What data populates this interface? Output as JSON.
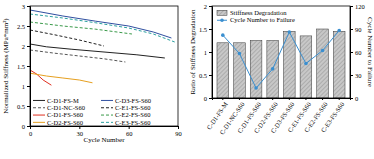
{
  "chart_data": [
    {
      "type": "line",
      "x_label": "Cycle Number",
      "y_label": "Normalized Stiffness (MPa*mm²)",
      "xlim": [
        0,
        90
      ],
      "xticks": [
        0,
        30,
        60,
        90
      ],
      "ylim": [
        0,
        3
      ],
      "yticks": [
        0,
        0.5,
        1,
        1.5,
        2,
        2.5,
        3
      ],
      "grid": false,
      "legend": "lower left",
      "series": [
        {
          "name": "C-D1-FS-M",
          "color": "#222222",
          "line_style": "solid",
          "x": [
            0,
            10,
            25,
            45,
            65,
            82
          ],
          "values": [
            2.05,
            1.98,
            1.92,
            1.85,
            1.78,
            1.7
          ]
        },
        {
          "name": "C-D1-NC-S60",
          "color": "#555555",
          "line_style": "dashed",
          "x": [
            0,
            15,
            30,
            45,
            58
          ],
          "values": [
            1.9,
            1.82,
            1.75,
            1.68,
            1.6
          ]
        },
        {
          "name": "C-D1-FS-S60",
          "color": "#e03020",
          "line_style": "solid",
          "x": [
            0,
            4,
            8,
            13
          ],
          "values": [
            1.4,
            1.3,
            1.15,
            1.02
          ]
        },
        {
          "name": "C-D2-FS-S60",
          "color": "#e6a020",
          "line_style": "solid",
          "x": [
            0,
            10,
            20,
            30,
            38
          ],
          "values": [
            1.32,
            1.25,
            1.2,
            1.15,
            1.08
          ]
        },
        {
          "name": "C-D3-FS-S60",
          "color": "#2f4fa0",
          "line_style": "solid",
          "x": [
            0,
            20,
            40,
            60,
            75,
            86
          ],
          "values": [
            2.9,
            2.75,
            2.62,
            2.5,
            2.35,
            2.2
          ]
        },
        {
          "name": "C-E1-FS-S60",
          "color": "#222222",
          "line_style": "dashed",
          "x": [
            0,
            15,
            30,
            45
          ],
          "values": [
            2.4,
            2.28,
            2.15,
            2.0
          ]
        },
        {
          "name": "C-E2-FS-S60",
          "color": "#3a9a4a",
          "line_style": "dashed",
          "x": [
            0,
            20,
            40,
            62
          ],
          "values": [
            2.6,
            2.5,
            2.42,
            2.3
          ]
        },
        {
          "name": "C-E3-FS-S60",
          "color": "#2aa0a0",
          "line_style": "dashed",
          "x": [
            0,
            20,
            40,
            60,
            75,
            88
          ],
          "values": [
            2.8,
            2.7,
            2.58,
            2.45,
            2.3,
            2.1
          ]
        }
      ]
    },
    {
      "type": "bar",
      "y_label": "Ratio of Stiffness Degradation",
      "y2_label": "Cycle Number to Failure",
      "categories": [
        "C-D1-FS-M",
        "C-D1-NC-S60",
        "C-D1-FS-S60",
        "C-D2-FS-S60",
        "C-D3-FS-S60",
        "C-E1-FS-S60",
        "C-E2-FS-S60",
        "C-E3-FS-S60"
      ],
      "ylim": [
        0,
        2
      ],
      "yticks": [
        0,
        0.5,
        1,
        1.5,
        2
      ],
      "y2lim": [
        0,
        120
      ],
      "y2ticks": [
        0,
        30,
        60,
        90,
        120
      ],
      "grid": false,
      "legend": "upper left",
      "series": [
        {
          "name": "Stiffness Degradation",
          "type": "bar",
          "color": "#c8c8c8",
          "values": [
            1.2,
            1.2,
            1.25,
            1.25,
            1.45,
            1.35,
            1.5,
            1.45
          ]
        },
        {
          "name": "Cycle Number to Failure",
          "type": "line",
          "axis": "y2",
          "color": "#3a8fd0",
          "marker": "circle",
          "values": [
            82,
            58,
            13,
            38,
            86,
            45,
            62,
            88
          ]
        }
      ]
    }
  ]
}
